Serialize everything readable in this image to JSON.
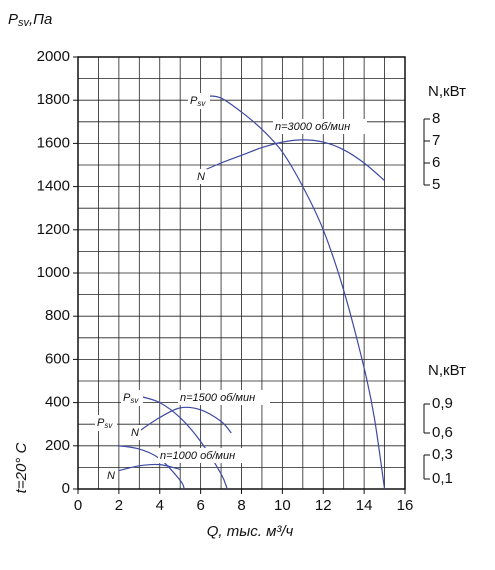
{
  "chart_data": {
    "type": "line",
    "ylabel_main": "P",
    "ylabel_sub": "sv",
    "ylabel_unit": ",Па",
    "xlabel": "Q, тыс. м³/ч",
    "note": "t=20° C",
    "xlim": [
      0,
      16
    ],
    "xticks": [
      0,
      2,
      4,
      6,
      8,
      10,
      12,
      14,
      16
    ],
    "ylim": [
      0,
      2000
    ],
    "yticks": [
      0,
      200,
      400,
      600,
      800,
      1000,
      1200,
      1400,
      1600,
      1800,
      2000
    ],
    "xgrid": [
      0,
      1,
      2,
      3,
      4,
      5,
      6,
      7,
      8,
      9,
      10,
      11,
      12,
      13,
      14,
      15,
      16
    ],
    "ygrid": [
      0,
      100,
      200,
      300,
      400,
      500,
      600,
      700,
      800,
      900,
      1000,
      1100,
      1200,
      1300,
      1400,
      1500,
      1600,
      1700,
      1800,
      1900,
      2000
    ],
    "grid": true,
    "color": "#3d4aa6",
    "power_axes": [
      {
        "title": "N,кВт",
        "lim": [
          5,
          8
        ],
        "ticks": [
          5,
          6,
          7,
          8
        ]
      },
      {
        "title": "N,кВт",
        "lim": [
          0.6,
          0.9
        ],
        "ticks": [
          {
            "value": 0.9,
            "label": "0,9"
          },
          {
            "value": 0.6,
            "label": "0,6"
          }
        ]
      },
      {
        "lim": [
          0.1,
          0.3
        ],
        "ticks": [
          {
            "value": 0.3,
            "label": "0,3"
          },
          {
            "value": 0.1,
            "label": "0,1"
          }
        ]
      }
    ],
    "speeds": [
      {
        "label": "n=3000 об/мин",
        "psv": {
          "label_main": "P",
          "label_sub": "sv",
          "x": [
            6.3,
            7,
            8,
            9,
            10,
            11,
            12,
            13,
            14,
            14.5,
            15
          ],
          "values": [
            1820,
            1810,
            1745,
            1665,
            1560,
            1400,
            1200,
            920,
            560,
            330,
            0
          ]
        },
        "power": {
          "label": "N",
          "axis": 0,
          "x": [
            6,
            7,
            8,
            9,
            10,
            11,
            12,
            13,
            14,
            15
          ],
          "values": [
            5.6,
            6.0,
            6.35,
            6.7,
            6.95,
            7.05,
            6.95,
            6.6,
            6.0,
            5.2
          ]
        }
      },
      {
        "label": "n=1500 об/мин",
        "psv": {
          "label_main": "P",
          "label_sub": "sv",
          "x": [
            3,
            4,
            5,
            6,
            7,
            7.3
          ],
          "values": [
            430,
            400,
            330,
            220,
            70,
            0
          ]
        },
        "power": {
          "label": "N",
          "axis": 1,
          "x": [
            3,
            4,
            5,
            6,
            7,
            7.5
          ],
          "values": [
            0.62,
            0.76,
            0.86,
            0.84,
            0.72,
            0.6
          ]
        }
      },
      {
        "label": "n=1000 об/мин",
        "psv": {
          "label_main": "P",
          "label_sub": "sv",
          "x": [
            2,
            3,
            4,
            5,
            5.2
          ],
          "values": [
            200,
            185,
            140,
            40,
            0
          ]
        },
        "power": {
          "label": "N",
          "axis": 2,
          "x": [
            2,
            3,
            4,
            5
          ],
          "values": [
            0.17,
            0.21,
            0.22,
            0.18
          ]
        }
      }
    ]
  }
}
